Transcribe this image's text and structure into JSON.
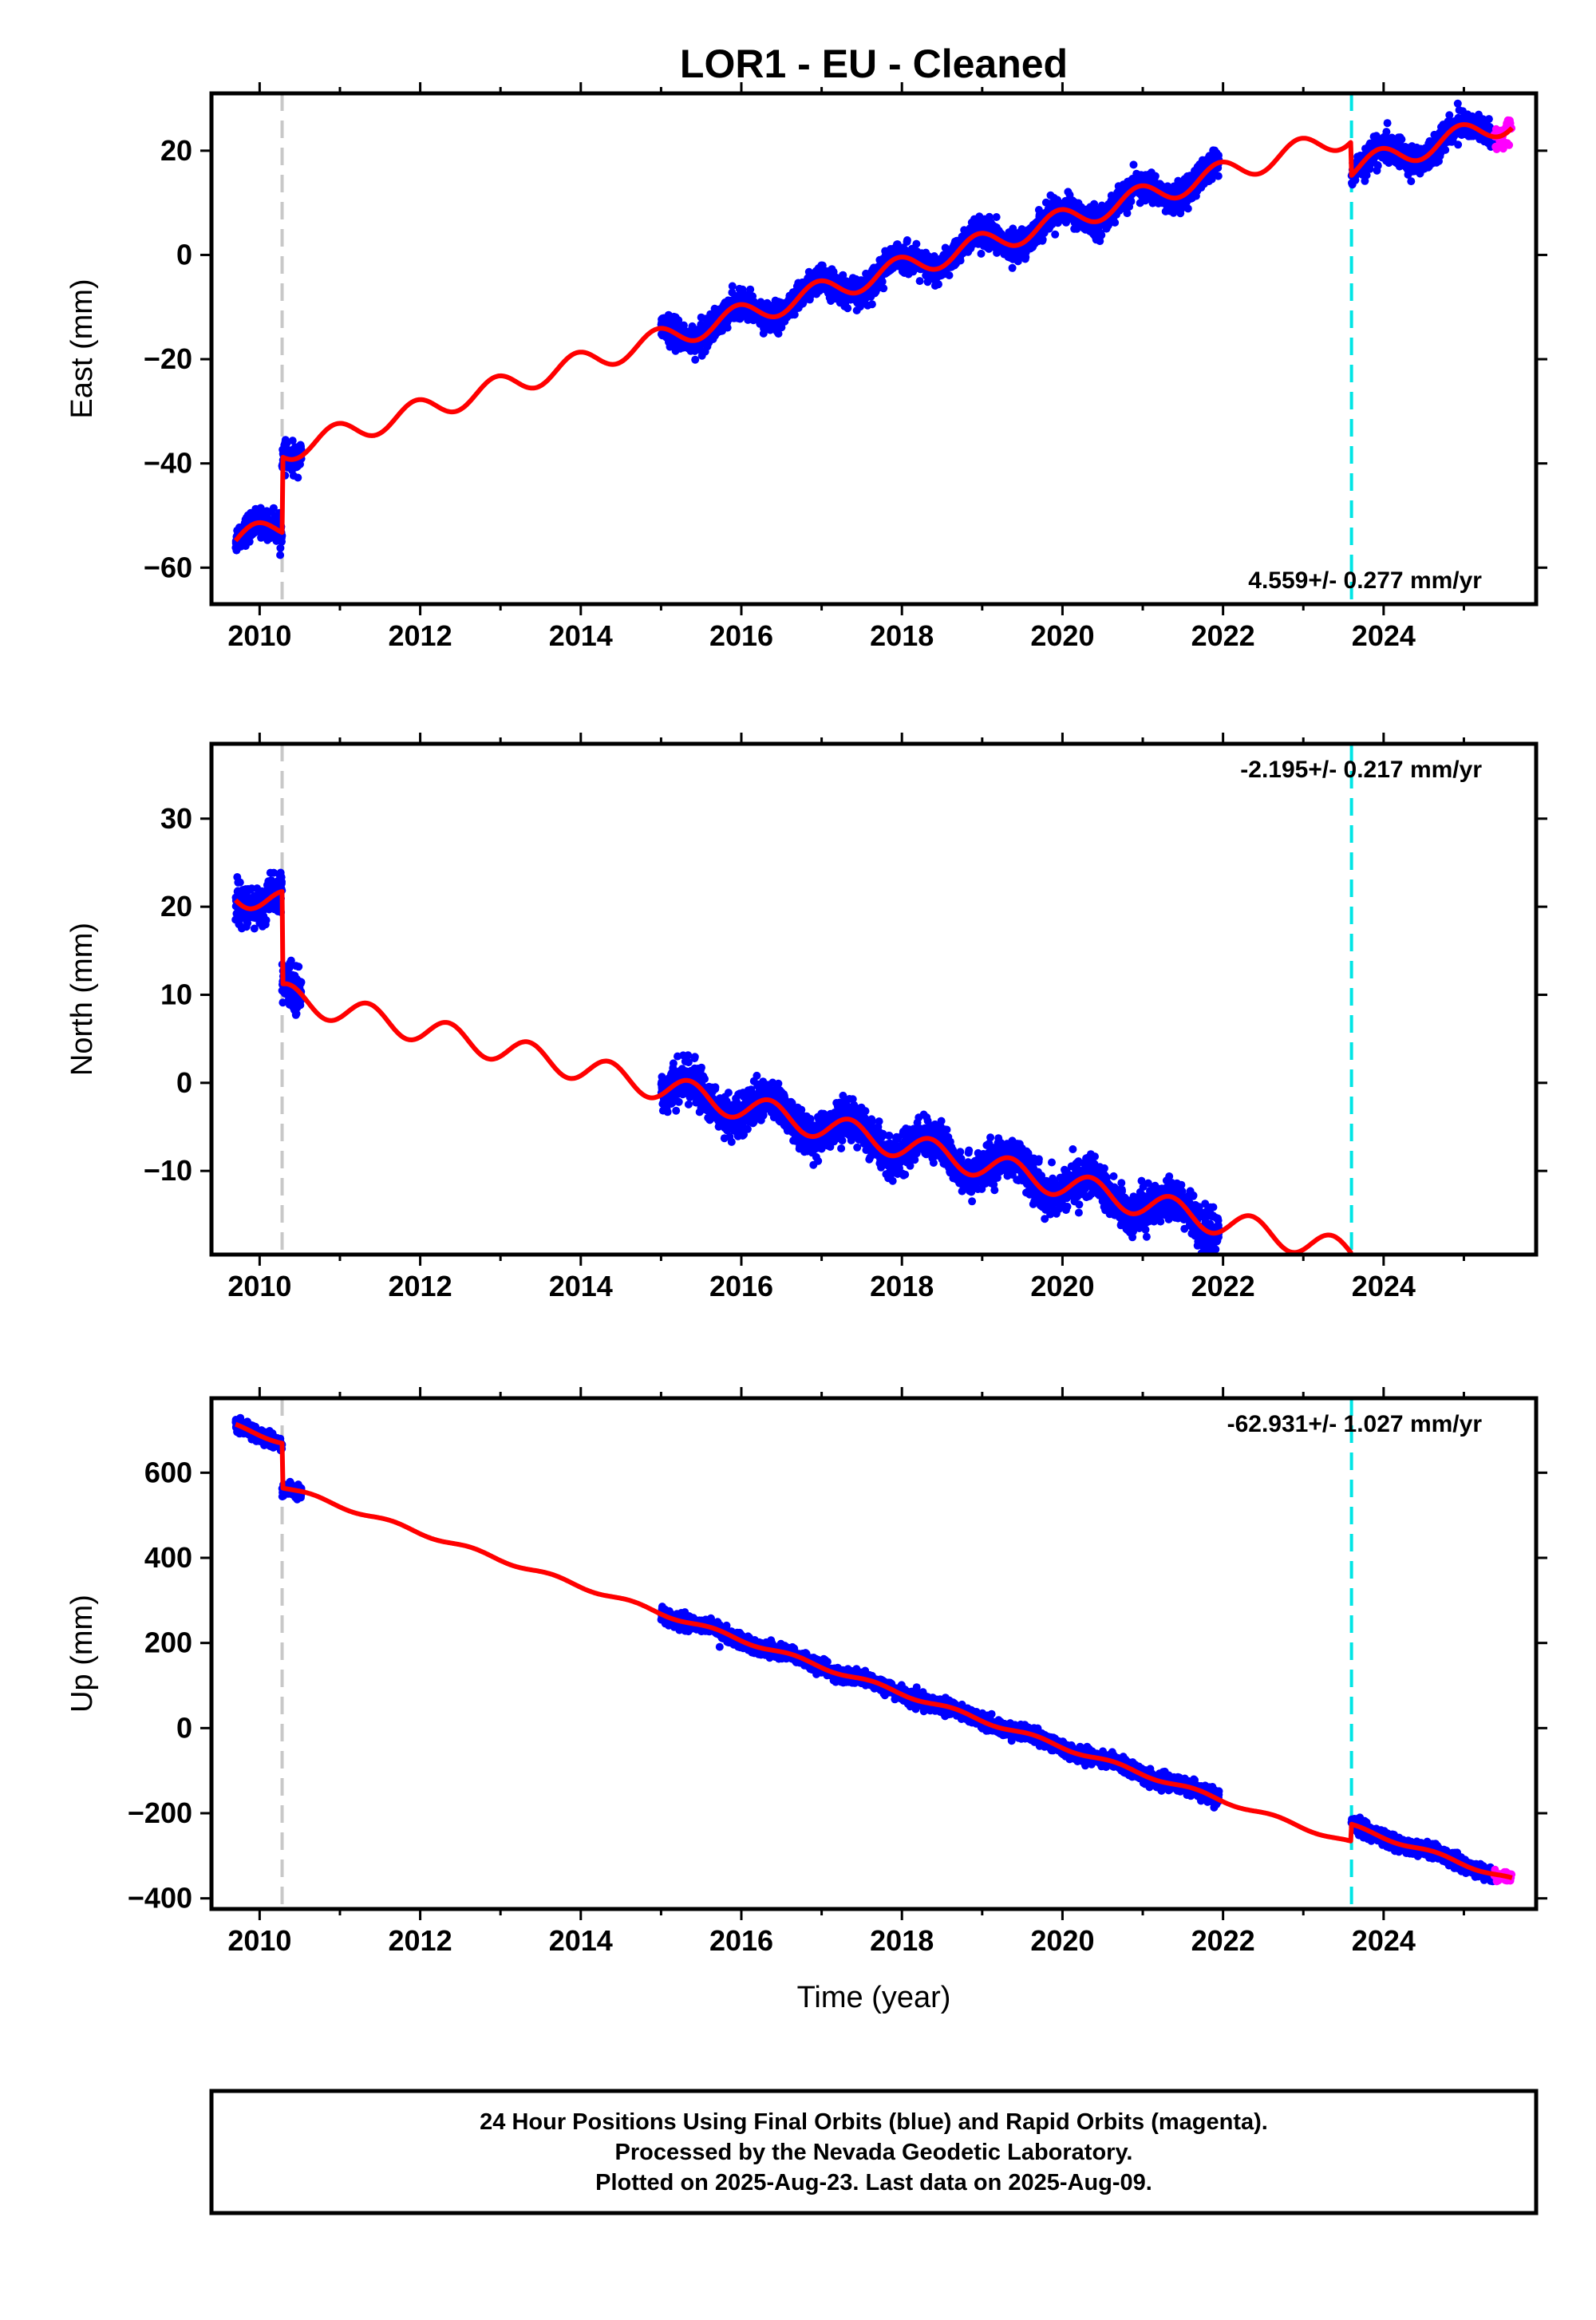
{
  "title": "LOR1  - EU - Cleaned",
  "xlabel": "Time (year)",
  "colors": {
    "final_orbits": "#0000ff",
    "rapid_orbits": "#ff00ff",
    "model": "#ff0000",
    "event_antenna": "#c8c8c8",
    "event_equipment": "#00e5e5"
  },
  "footer": {
    "line1": "24 Hour Positions Using Final Orbits (blue) and Rapid Orbits (magenta).",
    "line2": "Processed by the Nevada Geodetic Laboratory.",
    "line3": "Plotted on 2025-Aug-23. Last data on 2025-Aug-09."
  },
  "chart_data": [
    {
      "type": "scatter",
      "ylabel": "East (mm)",
      "rate_label": "4.559+/- 0.277 mm/yr",
      "rate_position": "bottom-right",
      "xlim": [
        2009.4,
        2025.9
      ],
      "ylim": [
        -67,
        31
      ],
      "xticks": [
        2010,
        2012,
        2014,
        2016,
        2018,
        2020,
        2022,
        2024
      ],
      "yticks": [
        -60,
        -40,
        -20,
        0,
        20
      ],
      "event_lines": [
        {
          "x": 2010.28,
          "style": "gray-dashed"
        },
        {
          "x": 2023.6,
          "style": "cyan-dashed"
        }
      ],
      "data_segments": [
        {
          "x_start": 2009.7,
          "x_end": 2010.52
        },
        {
          "x_start": 2015.0,
          "x_end": 2021.95
        },
        {
          "x_start": 2023.6,
          "x_end": 2025.38
        }
      ],
      "rapid_segment": {
        "x_start": 2025.38,
        "x_end": 2025.6
      },
      "model_intercept": -56.2,
      "model_rate": 4.559,
      "seasonal_amplitude": 2.2,
      "seasonal_phase": 0.3,
      "offsets": [
        {
          "x": 2010.28,
          "value": 14.5
        },
        {
          "x": 2023.6,
          "value": -6.5
        }
      ],
      "series": [
        {
          "name": "Final Orbits (blue)",
          "scatter_amplitude": 1.3
        },
        {
          "name": "Rapid Orbits (magenta)",
          "scatter_amplitude": 1.3
        }
      ]
    },
    {
      "type": "scatter",
      "ylabel": "North (mm)",
      "rate_label": "-2.195+/- 0.217 mm/yr",
      "rate_position": "top-right",
      "xlim": [
        2009.4,
        2025.9
      ],
      "ylim": [
        -19.5,
        38.5
      ],
      "xticks": [
        2010,
        2012,
        2014,
        2016,
        2018,
        2020,
        2022,
        2024
      ],
      "yticks": [
        -10,
        0,
        10,
        20,
        30
      ],
      "event_lines": [
        {
          "x": 2010.28,
          "style": "gray-dashed"
        },
        {
          "x": 2023.6,
          "style": "cyan-dashed"
        }
      ],
      "data_segments": [
        {
          "x_start": 2009.7,
          "x_end": 2010.52
        },
        {
          "x_start": 2015.0,
          "x_end": 2021.95
        },
        {
          "x_start": 2023.6,
          "x_end": 2025.38
        }
      ],
      "rapid_segment": {
        "x_start": 2025.38,
        "x_end": 2025.6
      },
      "model_intercept": 22.3,
      "model_rate": -2.195,
      "seasonal_amplitude": 1.5,
      "seasonal_phase": 0.9,
      "offsets": [
        {
          "x": 2010.28,
          "value": -10.5
        },
        {
          "x": 2023.6,
          "value": -4.0
        }
      ],
      "series": [
        {
          "name": "Final Orbits (blue)",
          "scatter_amplitude": 1.1
        },
        {
          "name": "Rapid Orbits (magenta)",
          "scatter_amplitude": 1.1
        }
      ]
    },
    {
      "type": "scatter",
      "ylabel": "Up (mm)",
      "rate_label": "-62.931+/- 1.027 mm/yr",
      "rate_position": "top-right",
      "xlim": [
        2009.4,
        2025.9
      ],
      "ylim": [
        -425,
        775
      ],
      "xticks": [
        2010,
        2012,
        2014,
        2016,
        2018,
        2020,
        2022,
        2024
      ],
      "yticks": [
        -400,
        -200,
        0,
        200,
        400,
        600
      ],
      "event_lines": [
        {
          "x": 2010.28,
          "style": "gray-dashed"
        },
        {
          "x": 2023.6,
          "style": "cyan-dashed"
        }
      ],
      "data_segments": [
        {
          "x_start": 2009.7,
          "x_end": 2010.52
        },
        {
          "x_start": 2015.0,
          "x_end": 2021.95
        },
        {
          "x_start": 2023.6,
          "x_end": 2025.38
        }
      ],
      "rapid_segment": {
        "x_start": 2025.38,
        "x_end": 2025.6
      },
      "model_intercept": 728,
      "model_rate": -62.931,
      "seasonal_amplitude": 5,
      "seasonal_phase": 0.6,
      "offsets": [
        {
          "x": 2010.28,
          "value": -105
        },
        {
          "x": 2023.6,
          "value": 40
        }
      ],
      "series": [
        {
          "name": "Final Orbits (blue)",
          "scatter_amplitude": 8
        },
        {
          "name": "Rapid Orbits (magenta)",
          "scatter_amplitude": 8
        }
      ]
    }
  ]
}
